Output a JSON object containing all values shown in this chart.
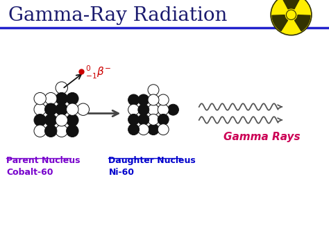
{
  "title": "Gamma-Ray Radiation",
  "title_color": "#1a1a6e",
  "title_fontsize": 20,
  "bg_color": "#ffffff",
  "line_color": "#2222cc",
  "parent_label1": "Parent Nucleus",
  "parent_label2": "Cobalt-60",
  "daughter_label1": "Daughter Nucleus",
  "daughter_label2": "Ni-60",
  "gamma_label": "Gamma Rays",
  "gamma_label_color": "#cc0055",
  "beta_color": "#cc0000",
  "nucleus_black": "#111111",
  "nucleus_white": "#ffffff",
  "nucleus_edge": "#111111",
  "arrow_color": "#444444",
  "label_color_purple": "#7700cc",
  "label_color_blue": "#0000cc",
  "rad_yellow": "#ffee00",
  "rad_dark": "#333300"
}
